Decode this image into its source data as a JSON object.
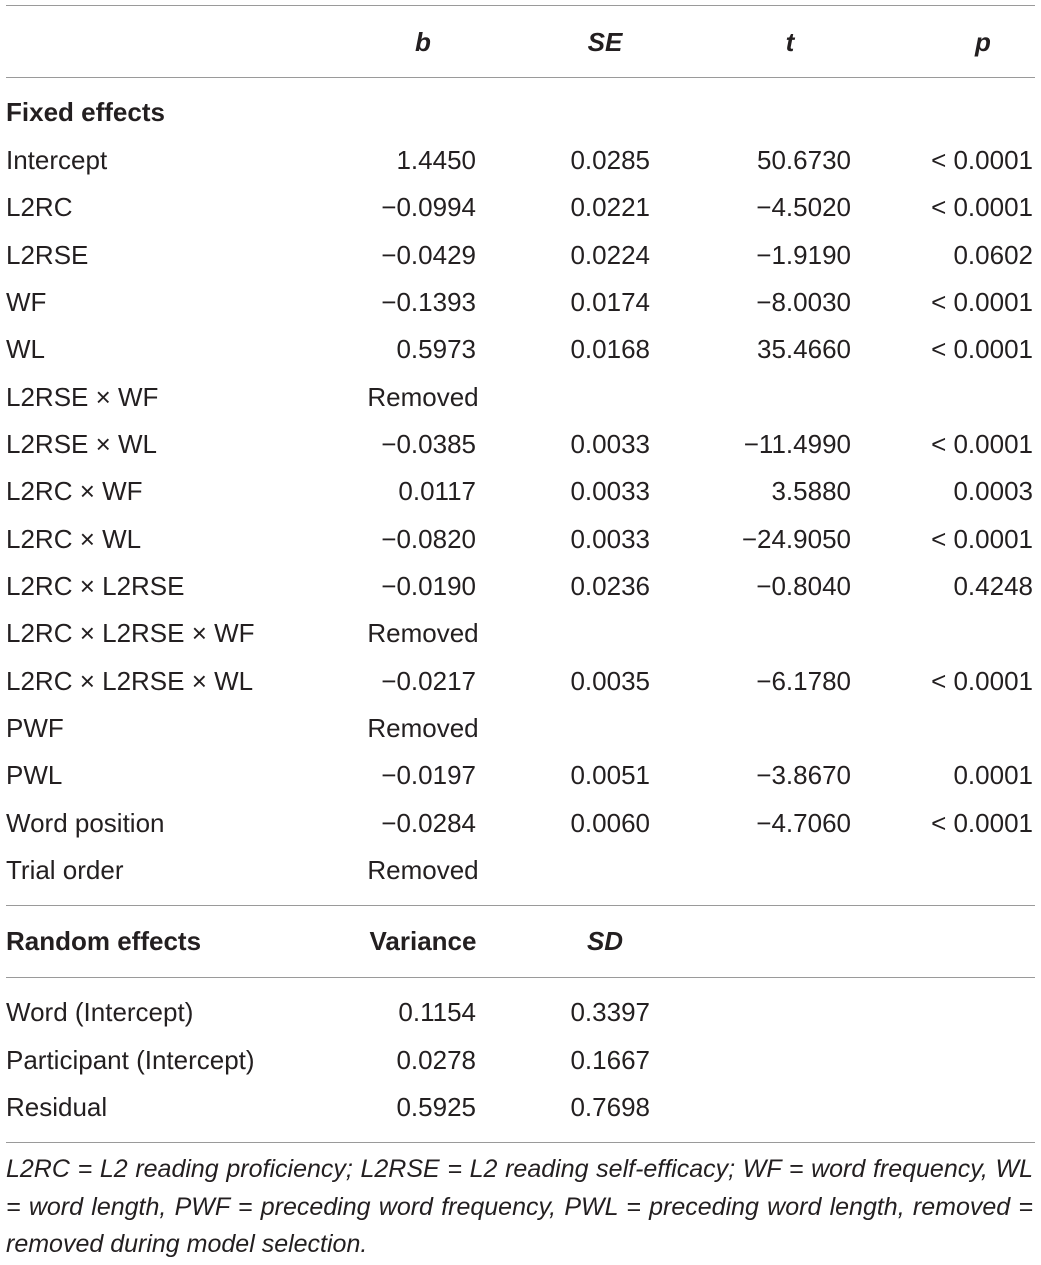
{
  "table": {
    "columns": [
      "b",
      "SE",
      "t",
      "p"
    ],
    "fixed": {
      "title": "Fixed effects",
      "rows": [
        [
          "Intercept",
          "1.4450",
          "0.0285",
          "50.6730",
          "< 0.0001"
        ],
        [
          "L2RC",
          "−0.0994",
          "0.0221",
          "−4.5020",
          "< 0.0001"
        ],
        [
          "L2RSE",
          "−0.0429",
          "0.0224",
          "−1.9190",
          "0.0602"
        ],
        [
          "WF",
          "−0.1393",
          "0.0174",
          "−8.0030",
          "< 0.0001"
        ],
        [
          "WL",
          "0.5973",
          "0.0168",
          "35.4660",
          "< 0.0001"
        ],
        [
          "L2RSE × WF",
          "Removed"
        ],
        [
          "L2RSE × WL",
          "−0.0385",
          "0.0033",
          "−11.4990",
          "< 0.0001"
        ],
        [
          "L2RC × WF",
          "0.0117",
          "0.0033",
          "3.5880",
          "0.0003"
        ],
        [
          "L2RC × WL",
          "−0.0820",
          "0.0033",
          "−24.9050",
          "< 0.0001"
        ],
        [
          "L2RC × L2RSE",
          "−0.0190",
          "0.0236",
          "−0.8040",
          "0.4248"
        ],
        [
          "L2RC × L2RSE × WF",
          "Removed"
        ],
        [
          "L2RC × L2RSE × WL",
          "−0.0217",
          "0.0035",
          "−6.1780",
          "< 0.0001"
        ],
        [
          "PWF",
          "Removed"
        ],
        [
          "PWL",
          "−0.0197",
          "0.0051",
          "−3.8670",
          "0.0001"
        ],
        [
          "Word position",
          "−0.0284",
          "0.0060",
          "−4.7060",
          "< 0.0001"
        ],
        [
          "Trial order",
          "Removed"
        ]
      ]
    },
    "random": {
      "title": "Random effects",
      "columns": [
        "Variance",
        "SD"
      ],
      "rows": [
        [
          "Word (Intercept)",
          "0.1154",
          "0.3397"
        ],
        [
          "Participant (Intercept)",
          "0.0278",
          "0.1667"
        ],
        [
          "Residual",
          "0.5925",
          "0.7698"
        ]
      ]
    },
    "note": "L2RC = L2 reading proficiency; L2RSE = L2 reading self-efficacy; WF = word frequency, WL = word length, PWF = preceding word frequency, PWL = preceding word length, removed = removed during model selection."
  }
}
